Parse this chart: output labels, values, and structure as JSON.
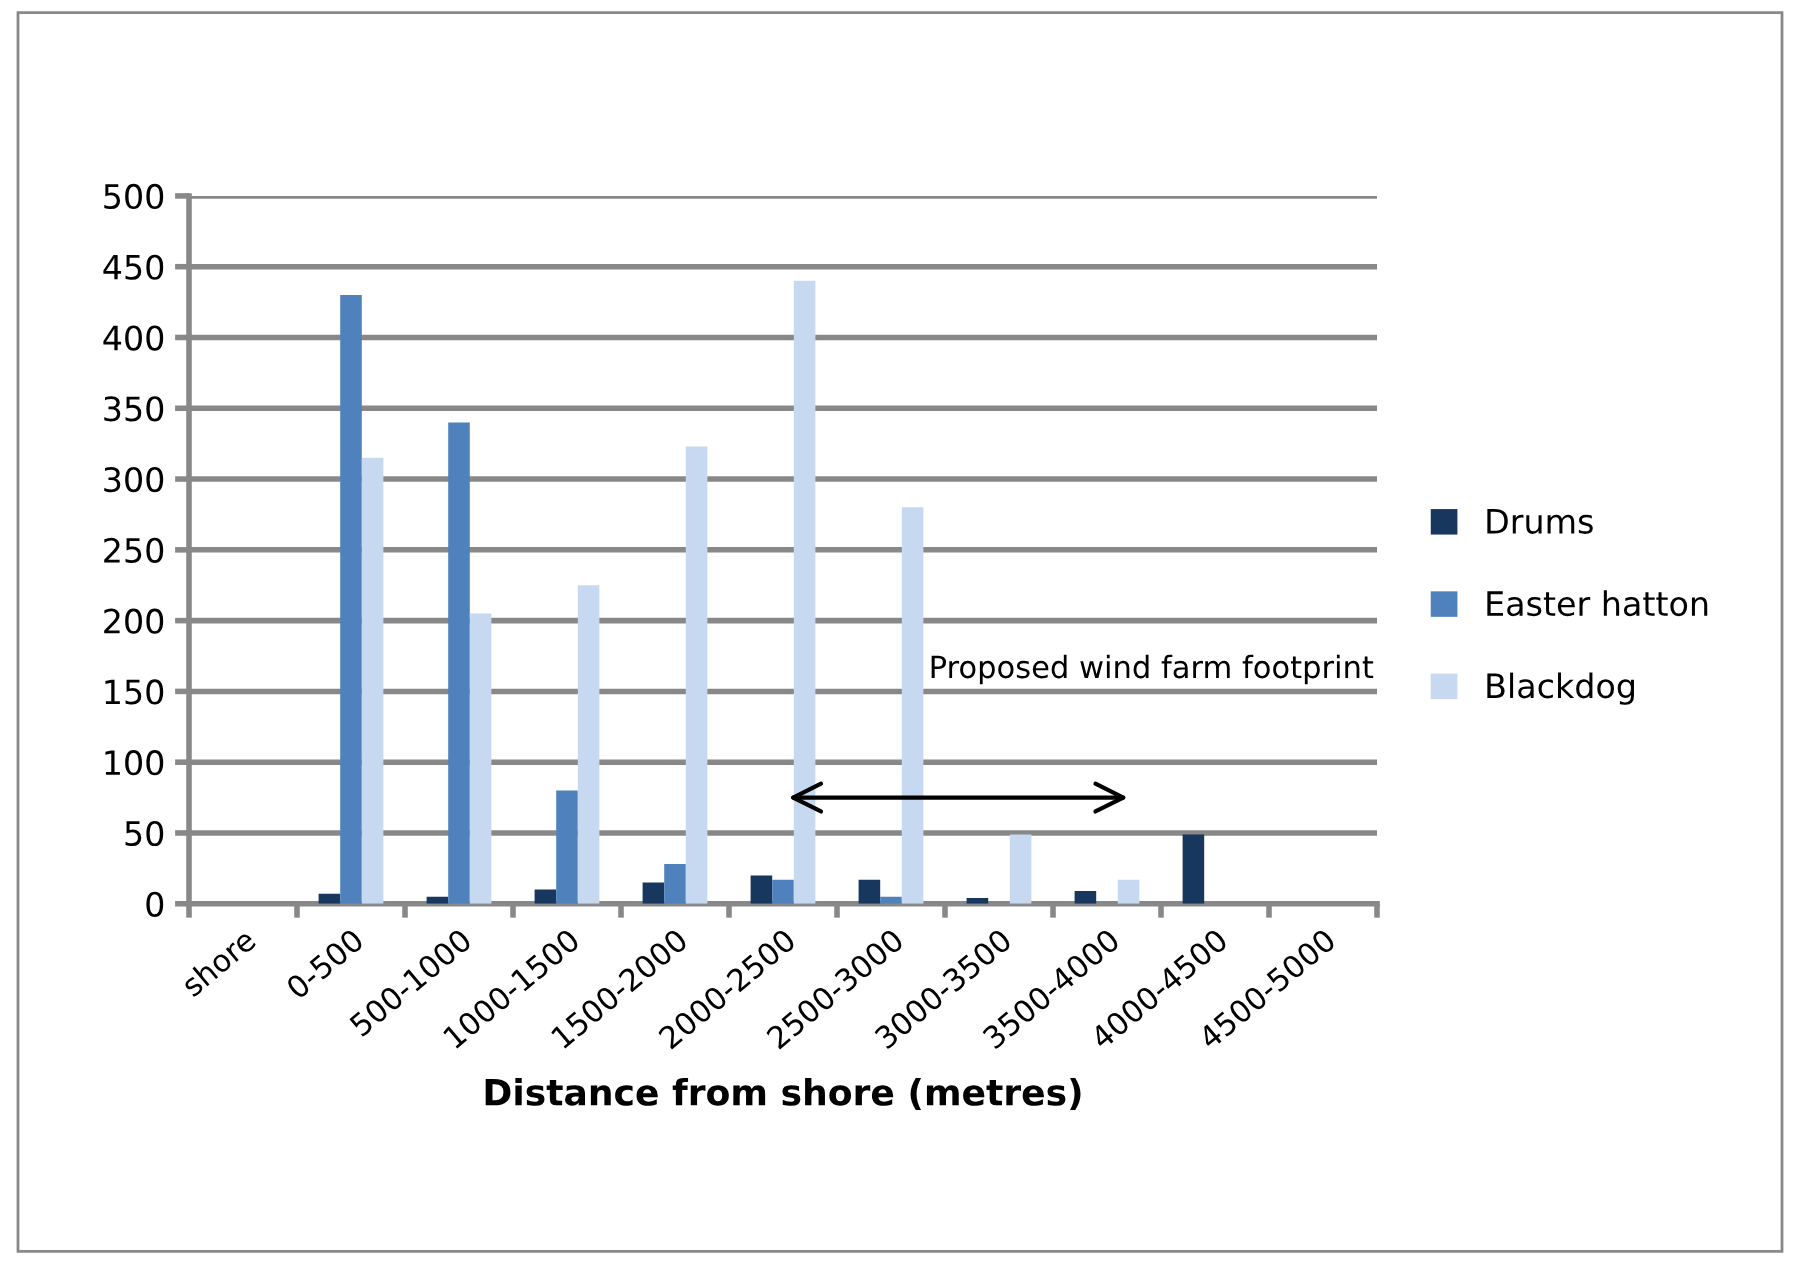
{
  "chart_data": {
    "type": "bar",
    "xlabel": "Distance from shore (metres)",
    "categories": [
      "shore",
      "0-500",
      "500-1000",
      "1000-1500",
      "1500-2000",
      "2000-2500",
      "2500-3000",
      "3000-3500",
      "3500-4000",
      "4000-4500",
      "4500-5000"
    ],
    "series": [
      {
        "name": "Drums",
        "color": "#17375e",
        "values": [
          0,
          7,
          5,
          10,
          15,
          20,
          17,
          4,
          9,
          49,
          0
        ]
      },
      {
        "name": "Easter hatton",
        "color": "#4f81bd",
        "values": [
          0,
          430,
          340,
          80,
          28,
          17,
          5,
          0,
          0,
          0,
          0
        ]
      },
      {
        "name": "Blackdog",
        "color": "#c6d9f1",
        "values": [
          0,
          315,
          205,
          225,
          323,
          440,
          280,
          49,
          17,
          0,
          0
        ]
      }
    ],
    "ylim": [
      0,
      500
    ],
    "yticks": [
      0,
      50,
      100,
      150,
      200,
      250,
      300,
      350,
      400,
      450,
      500
    ],
    "grid": "y",
    "legend": "right",
    "annotations": [
      "Proposed wind farm footprint"
    ]
  }
}
